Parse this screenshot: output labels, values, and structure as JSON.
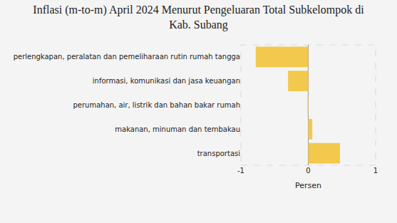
{
  "chart_data": {
    "type": "bar",
    "orientation": "horizontal",
    "title": "Inflasi (m-to-m) April 2024 Menurut Pengeluaran Total Subkelompok di Kab. Subang",
    "x_label": "Persen",
    "categories": [
      "perlengkapan, peralatan dan pemeliharaan rutin rumah tangga",
      "informasi, komunikasi dan jasa keuangan",
      "perumahan, air, listrik dan bahan bakar rumah",
      "makanan, minuman dan tembakau",
      "transportasi"
    ],
    "values": [
      -0.78,
      -0.3,
      -0.01,
      0.06,
      0.47
    ],
    "color": "#f2c94c",
    "xlim": [
      -1,
      1
    ],
    "xticks": [
      -1,
      0,
      1
    ],
    "grid": true
  }
}
